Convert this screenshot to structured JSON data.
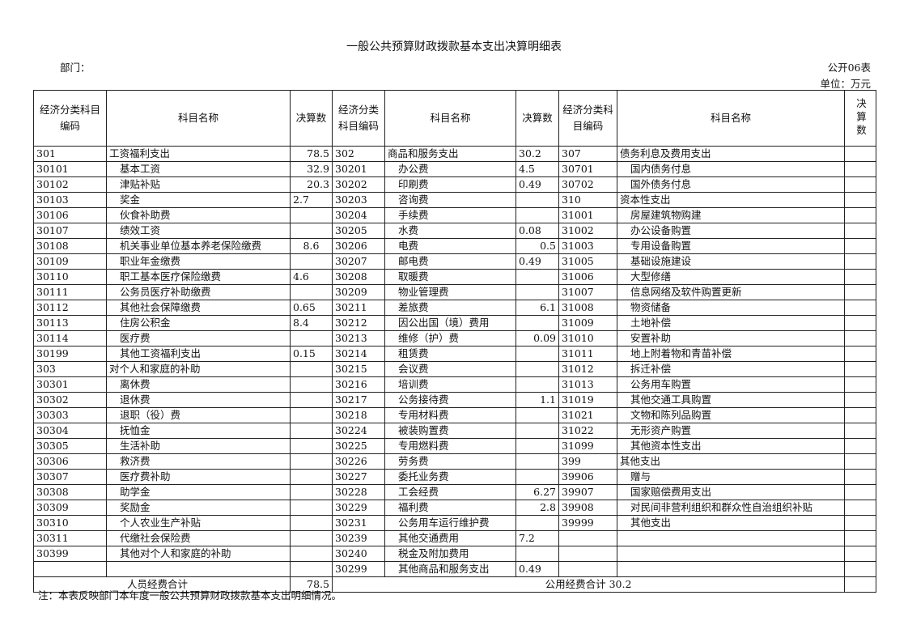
{
  "title": "一般公共预算财政拨款基本支出决算明细表",
  "department_label": "部门：",
  "form_number": "公开06表",
  "unit_label": "单位：万元",
  "headers": [
    "经济分类科目编码",
    "科目名称",
    "决算数",
    "经济分类科目编码",
    "科目名称",
    "决算数",
    "经济分类科目编码",
    "科目名称",
    "决算数"
  ],
  "rows": [
    [
      "301",
      "工资福利支出",
      "78.5",
      "302",
      "商品和服务支出",
      "30.2",
      "307",
      "债务利息及费用支出",
      ""
    ],
    [
      "30101",
      "基本工资",
      "32.9",
      "30201",
      "办公费",
      "4.5",
      "30701",
      "国内债务付息",
      ""
    ],
    [
      "30102",
      "津贴补贴",
      "20.3",
      "30202",
      "印刷费",
      "0.49",
      "30702",
      "国外债务付息",
      ""
    ],
    [
      "30103",
      "奖金",
      "2.7",
      "30203",
      "咨询费",
      "",
      "310",
      "资本性支出",
      ""
    ],
    [
      "30106",
      "伙食补助费",
      "",
      "30204",
      "手续费",
      "",
      "31001",
      "房屋建筑物购建",
      ""
    ],
    [
      "30107",
      "绩效工资",
      "",
      "30205",
      "水费",
      "0.08",
      "31002",
      "办公设备购置",
      ""
    ],
    [
      "30108",
      "机关事业单位基本养老保险缴费",
      "8.6",
      "30206",
      "电费",
      "0.5",
      "31003",
      "专用设备购置",
      ""
    ],
    [
      "30109",
      "职业年金缴费",
      "",
      "30207",
      "邮电费",
      "0.49",
      "31005",
      "基础设施建设",
      ""
    ],
    [
      "30110",
      "职工基本医疗保险缴费",
      "4.6",
      "30208",
      "取暖费",
      "",
      "31006",
      "大型修缮",
      ""
    ],
    [
      "30111",
      "公务员医疗补助缴费",
      "",
      "30209",
      "物业管理费",
      "",
      "31007",
      "信息网络及软件购置更新",
      ""
    ],
    [
      "30112",
      "其他社会保障缴费",
      "0.65",
      "30211",
      "差旅费",
      "6.1",
      "31008",
      "物资储备",
      ""
    ],
    [
      "30113",
      "住房公积金",
      "8.4",
      "30212",
      "因公出国（境）费用",
      "",
      "31009",
      "土地补偿",
      ""
    ],
    [
      "30114",
      "医疗费",
      "",
      "30213",
      "维修（护）费",
      "0.09",
      "31010",
      "安置补助",
      ""
    ],
    [
      "30199",
      "其他工资福利支出",
      "0.15",
      "30214",
      "租赁费",
      "",
      "31011",
      "地上附着物和青苗补偿",
      ""
    ],
    [
      "303",
      "对个人和家庭的补助",
      "",
      "30215",
      "会议费",
      "",
      "31012",
      "拆迁补偿",
      ""
    ],
    [
      "30301",
      "离休费",
      "",
      "30216",
      "培训费",
      "",
      "31013",
      "公务用车购置",
      ""
    ],
    [
      "30302",
      "退休费",
      "",
      "30217",
      "公务接待费",
      "1.1",
      "31019",
      "其他交通工具购置",
      ""
    ],
    [
      "30303",
      "退职（役）费",
      "",
      "30218",
      "专用材料费",
      "",
      "31021",
      "文物和陈列品购置",
      ""
    ],
    [
      "30304",
      "抚恤金",
      "",
      "30224",
      "被装购置费",
      "",
      "31022",
      "无形资产购置",
      ""
    ],
    [
      "30305",
      "生活补助",
      "",
      "30225",
      "专用燃料费",
      "",
      "31099",
      "其他资本性支出",
      ""
    ],
    [
      "30306",
      "救济费",
      "",
      "30226",
      "劳务费",
      "",
      "399",
      "其他支出",
      ""
    ],
    [
      "30307",
      "医疗费补助",
      "",
      "30227",
      "委托业务费",
      "",
      "39906",
      "赠与",
      ""
    ],
    [
      "30308",
      "助学金",
      "",
      "30228",
      "工会经费",
      "6.27",
      "39907",
      "国家赔偿费用支出",
      ""
    ],
    [
      "30309",
      "奖励金",
      "",
      "30229",
      "福利费",
      "2.8",
      "39908",
      "对民间非营利组织和群众性自治组织补贴",
      ""
    ],
    [
      "30310",
      "个人农业生产补贴",
      "",
      "30231",
      "公务用车运行维护费",
      "",
      "39999",
      "其他支出",
      ""
    ],
    [
      "30311",
      "代缴社会保险费",
      "",
      "30239",
      "其他交通费用",
      "7.2",
      "",
      "",
      ""
    ],
    [
      "30399",
      "其他对个人和家庭的补助",
      "",
      "30240",
      "税金及附加费用",
      "",
      "",
      "",
      ""
    ],
    [
      "",
      "",
      "",
      "30299",
      "其他商品和服务支出",
      "0.49",
      "",
      "",
      ""
    ]
  ],
  "totals": {
    "personnel_label": "人员经费合计",
    "personnel_value": "78.5",
    "public_label": "公用经费合计 30.2"
  },
  "note": "注：本表反映部门本年度一般公共预算财政拨款基本支出明细情况。"
}
